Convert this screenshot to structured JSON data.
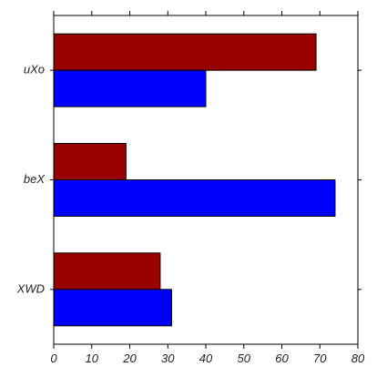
{
  "chart_data": {
    "type": "bar",
    "orientation": "horizontal",
    "categories": [
      "uXo",
      "beX",
      "XWD"
    ],
    "series": [
      {
        "values": [
          69,
          19,
          28
        ],
        "color": "#990000"
      },
      {
        "values": [
          40,
          74,
          31
        ],
        "color": "#0000ff"
      }
    ],
    "xlim": [
      0,
      80
    ],
    "xticks": [
      "0",
      "10",
      "20",
      "30",
      "40",
      "50",
      "60",
      "70",
      "80"
    ],
    "grid": false,
    "legend": "none"
  }
}
